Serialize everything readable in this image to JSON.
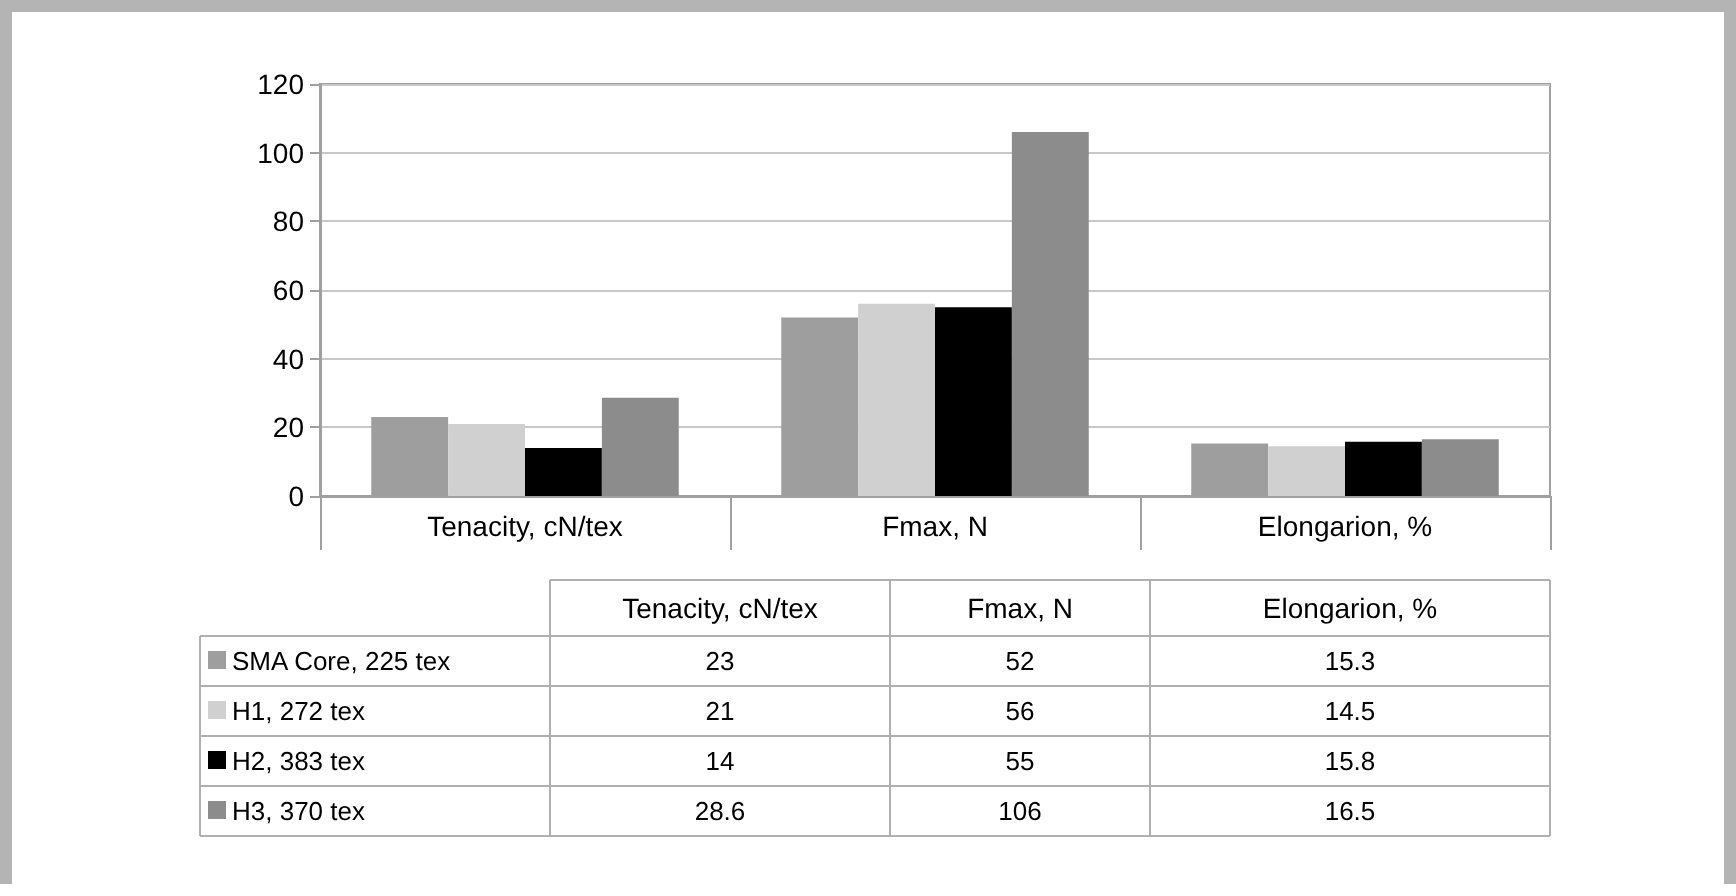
{
  "chart_data": {
    "type": "bar",
    "categories": [
      "Tenacity, cN/tex",
      "Fmax, N",
      "Elongarion, %"
    ],
    "series": [
      {
        "name": "SMA Core, 225 tex",
        "color": "#9e9e9e",
        "values": [
          23,
          52,
          15.3
        ]
      },
      {
        "name": "H1, 272 tex",
        "color": "#d0d0d0",
        "values": [
          21,
          56,
          14.5
        ]
      },
      {
        "name": "H2, 383 tex",
        "color": "#000000",
        "values": [
          14,
          55,
          15.8
        ]
      },
      {
        "name": "H3, 370 tex",
        "color": "#8c8c8c",
        "values": [
          28.6,
          106,
          16.5
        ]
      }
    ],
    "ylim": [
      0,
      120
    ],
    "yticks": [
      0,
      20,
      40,
      60,
      80,
      100,
      120
    ],
    "grid": "y",
    "legend": "bottom",
    "data_labels": true
  }
}
